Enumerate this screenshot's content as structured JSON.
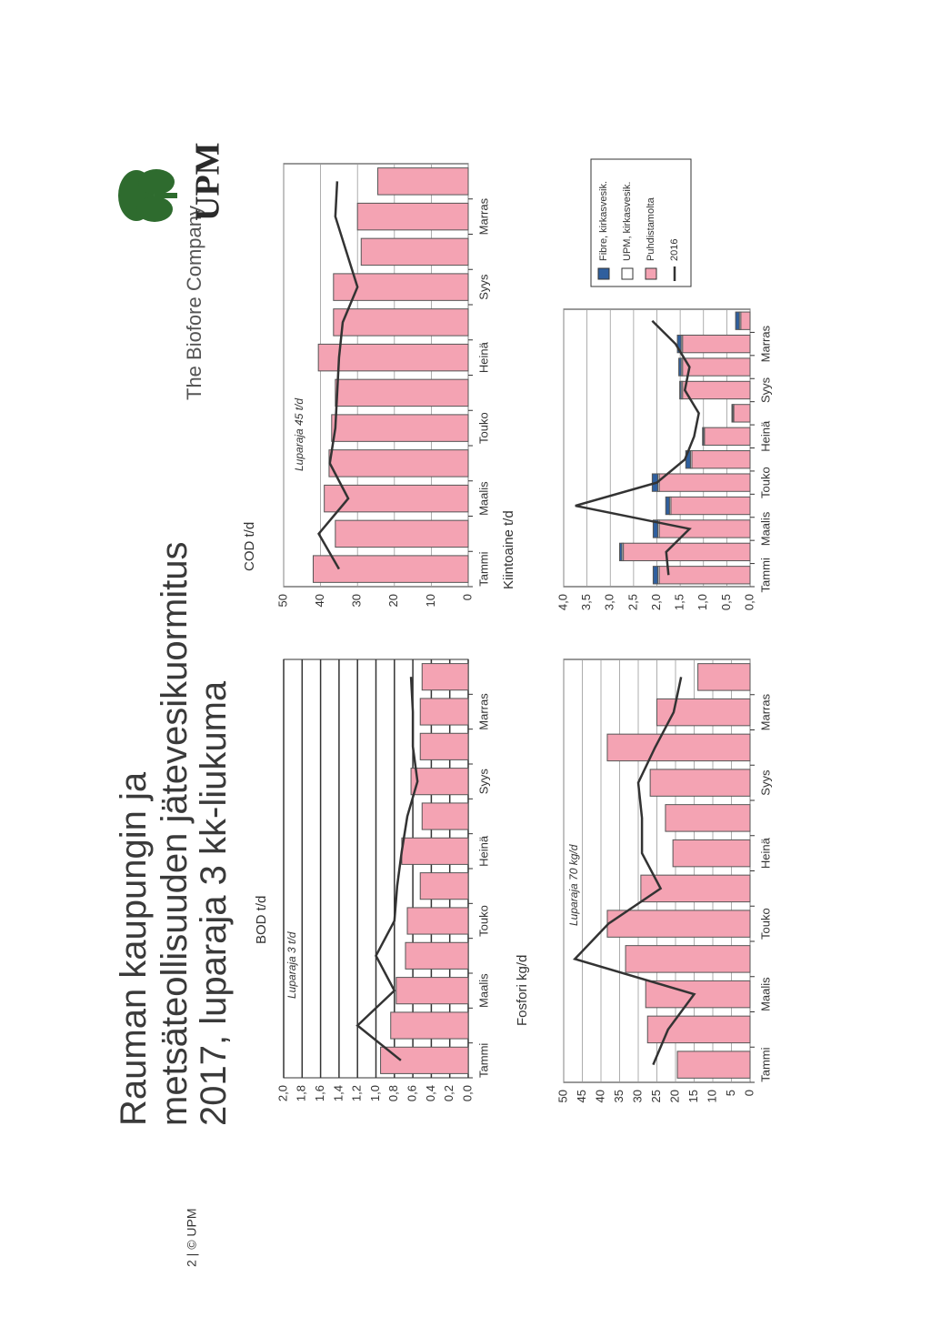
{
  "header": {
    "title": [
      "Rauman kaupungin ja",
      "metsäteollisuuden jätevesikuormitus",
      "2017, luparaja 3 kk-liukuma"
    ],
    "brand": "The Biofore Company",
    "logo": "UPM"
  },
  "footer": "2 | © UPM",
  "chart_data": [
    {
      "type": "bar",
      "title": "BOD t/d",
      "annotation": "Luparaja 3 t/d",
      "categories": [
        "Tammi",
        null,
        "Maalis",
        null,
        "Touko",
        null,
        "Heinä",
        null,
        "Syys",
        null,
        "Marras",
        null
      ],
      "ylim": [
        0,
        2
      ],
      "grid": true,
      "yticks": [
        {
          "value": 0,
          "label": "0,0"
        },
        {
          "value": 0.2,
          "label": "0,2"
        },
        {
          "value": 0.4,
          "label": "0,4"
        },
        {
          "value": 0.6,
          "label": "0,6"
        },
        {
          "value": 0.8,
          "label": "0,8"
        },
        {
          "value": 1,
          "label": "1,0"
        },
        {
          "value": 1.2,
          "label": "1,2"
        },
        {
          "value": 1.4,
          "label": "1,4"
        },
        {
          "value": 1.6,
          "label": "1,6"
        },
        {
          "value": 1.8,
          "label": "1,8"
        },
        {
          "value": 2,
          "label": "2,0"
        }
      ],
      "series": [
        {
          "color": "#f4a3b3",
          "values": [
            0.95,
            0.84,
            0.78,
            0.68,
            0.66,
            0.52,
            0.72,
            0.5,
            0.62,
            0.52,
            0.52,
            0.5
          ]
        },
        {
          "type": "line",
          "color": "#333333",
          "values": [
            0.73,
            1.2,
            0.8,
            1.0,
            0.8,
            0.77,
            0.72,
            0.66,
            0.55,
            0.6,
            0.6,
            0.62
          ]
        }
      ]
    },
    {
      "type": "bar",
      "title": "COD t/d",
      "annotation": "Luparaja 45 t/d",
      "categories": [
        "Tammi",
        null,
        "Maalis",
        null,
        "Touko",
        null,
        "Heinä",
        null,
        "Syys",
        null,
        "Marras",
        null
      ],
      "ylim": [
        0,
        50
      ],
      "yticks": [
        0,
        10,
        20,
        30,
        40,
        50
      ],
      "grid": true,
      "series": [
        {
          "color": "#f4a3b3",
          "values": [
            42,
            36,
            39,
            37.7,
            37,
            36,
            40.6,
            36.5,
            36.5,
            29,
            30,
            24.5
          ]
        },
        {
          "type": "line",
          "color": "#333333",
          "values": [
            35,
            40.5,
            32.5,
            37.5,
            36,
            35.5,
            35,
            34,
            30,
            33,
            36,
            35.5
          ]
        }
      ]
    },
    {
      "type": "bar",
      "title": "Fosfori kg/d",
      "annotation": "Luparaja 70 kg/d",
      "categories": [
        "Tammi",
        null,
        "Maalis",
        null,
        "Touko",
        null,
        "Heinä",
        null,
        "Syys",
        null,
        "Marras",
        null
      ],
      "ylim": [
        0,
        50
      ],
      "yticks": [
        0,
        5,
        10,
        15,
        20,
        25,
        30,
        35,
        40,
        45,
        50
      ],
      "grid": true,
      "series": [
        {
          "color": "#f4a3b3",
          "values": [
            19.5,
            27.5,
            28,
            33.4,
            38.3,
            29.3,
            20.7,
            22.7,
            26.8,
            38.3,
            25,
            14
          ]
        },
        {
          "type": "line",
          "color": "#333333",
          "values": [
            26,
            22,
            15,
            47,
            38,
            24,
            29,
            29,
            30,
            25.5,
            20.5,
            18.5
          ]
        }
      ]
    },
    {
      "type": "bar",
      "title": "Kiintoaine t/d",
      "categories": [
        "Tammi",
        null,
        "Maalis",
        null,
        "Touko",
        null,
        "Heinä",
        null,
        "Syys",
        null,
        "Marras",
        null
      ],
      "ylim": [
        0,
        4
      ],
      "grid": true,
      "legend": "right",
      "yticks": [
        {
          "value": 0,
          "label": "0,0"
        },
        {
          "value": 0.5,
          "label": "0,5"
        },
        {
          "value": 1,
          "label": "1,0"
        },
        {
          "value": 1.5,
          "label": "1,5"
        },
        {
          "value": 2,
          "label": "2,0"
        },
        {
          "value": 2.5,
          "label": "2,5"
        },
        {
          "value": 3,
          "label": "3,0"
        },
        {
          "value": 3.5,
          "label": "3,5"
        },
        {
          "value": 4,
          "label": "4,0"
        }
      ],
      "series": [
        {
          "name": "Puhdistamolta",
          "color": "#f4a3b3",
          "values": [
            1.95,
            2.72,
            1.95,
            1.7,
            1.95,
            1.25,
            0.98,
            0.35,
            1.45,
            1.45,
            1.45,
            0.2
          ]
        },
        {
          "name": "UPM, kirkasvesik.",
          "color": "#ffffff",
          "values": [
            0.03,
            0.03,
            0.03,
            0.03,
            0.03,
            0.03,
            0.02,
            0.02,
            0.03,
            0.03,
            0.03,
            0.03
          ]
        },
        {
          "name": "Fibre, kirkasvesik.",
          "color": "#2f5f9e",
          "values": [
            0.1,
            0.05,
            0.1,
            0.08,
            0.12,
            0.1,
            0.02,
            0.02,
            0.03,
            0.05,
            0.08,
            0.08
          ]
        },
        {
          "name": "2016",
          "type": "line",
          "color": "#333333",
          "values": [
            1.75,
            1.8,
            1.3,
            3.75,
            2.0,
            1.4,
            1.2,
            1.1,
            1.4,
            1.3,
            1.6,
            2.1
          ]
        }
      ]
    }
  ]
}
